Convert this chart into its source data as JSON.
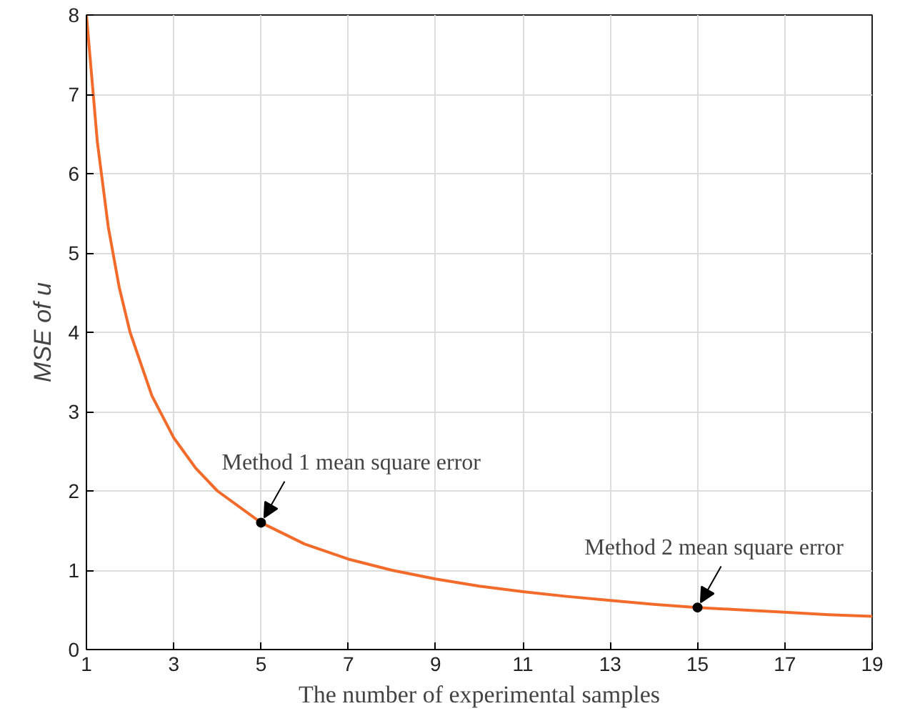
{
  "chart_data": {
    "type": "line",
    "xlabel": "The number of experimental samples",
    "ylabel": "MSE of u",
    "x": [
      1,
      1.25,
      1.5,
      1.75,
      2,
      2.5,
      3,
      3.5,
      4,
      5,
      6,
      7,
      8,
      9,
      10,
      11,
      12,
      13,
      14,
      15,
      16,
      17,
      18,
      19
    ],
    "series": [
      {
        "color": "#f26b2a",
        "values": [
          8,
          6.4,
          5.33,
          4.57,
          4,
          3.2,
          2.67,
          2.29,
          2,
          1.6,
          1.33,
          1.14,
          1,
          0.89,
          0.8,
          0.73,
          0.67,
          0.62,
          0.57,
          0.53,
          0.5,
          0.47,
          0.44,
          0.42
        ]
      },
      {
        "type": "scatter",
        "marker": "circle",
        "color": "#000000",
        "x": [
          5,
          15
        ],
        "values": [
          1.6,
          0.53
        ]
      }
    ],
    "annotations": [
      {
        "text": "Method 1 mean square error",
        "x": 5,
        "y": 1.6
      },
      {
        "text": "Method 2 mean square error",
        "x": 15,
        "y": 0.53
      }
    ],
    "xlim": [
      1,
      19
    ],
    "xticks": [
      1,
      3,
      5,
      7,
      9,
      11,
      13,
      15,
      17,
      19
    ],
    "ylim": [
      0,
      8
    ],
    "yticks": [
      0,
      1,
      2,
      3,
      4,
      5,
      6,
      7,
      8
    ],
    "grid": true,
    "line_style": "solid"
  }
}
